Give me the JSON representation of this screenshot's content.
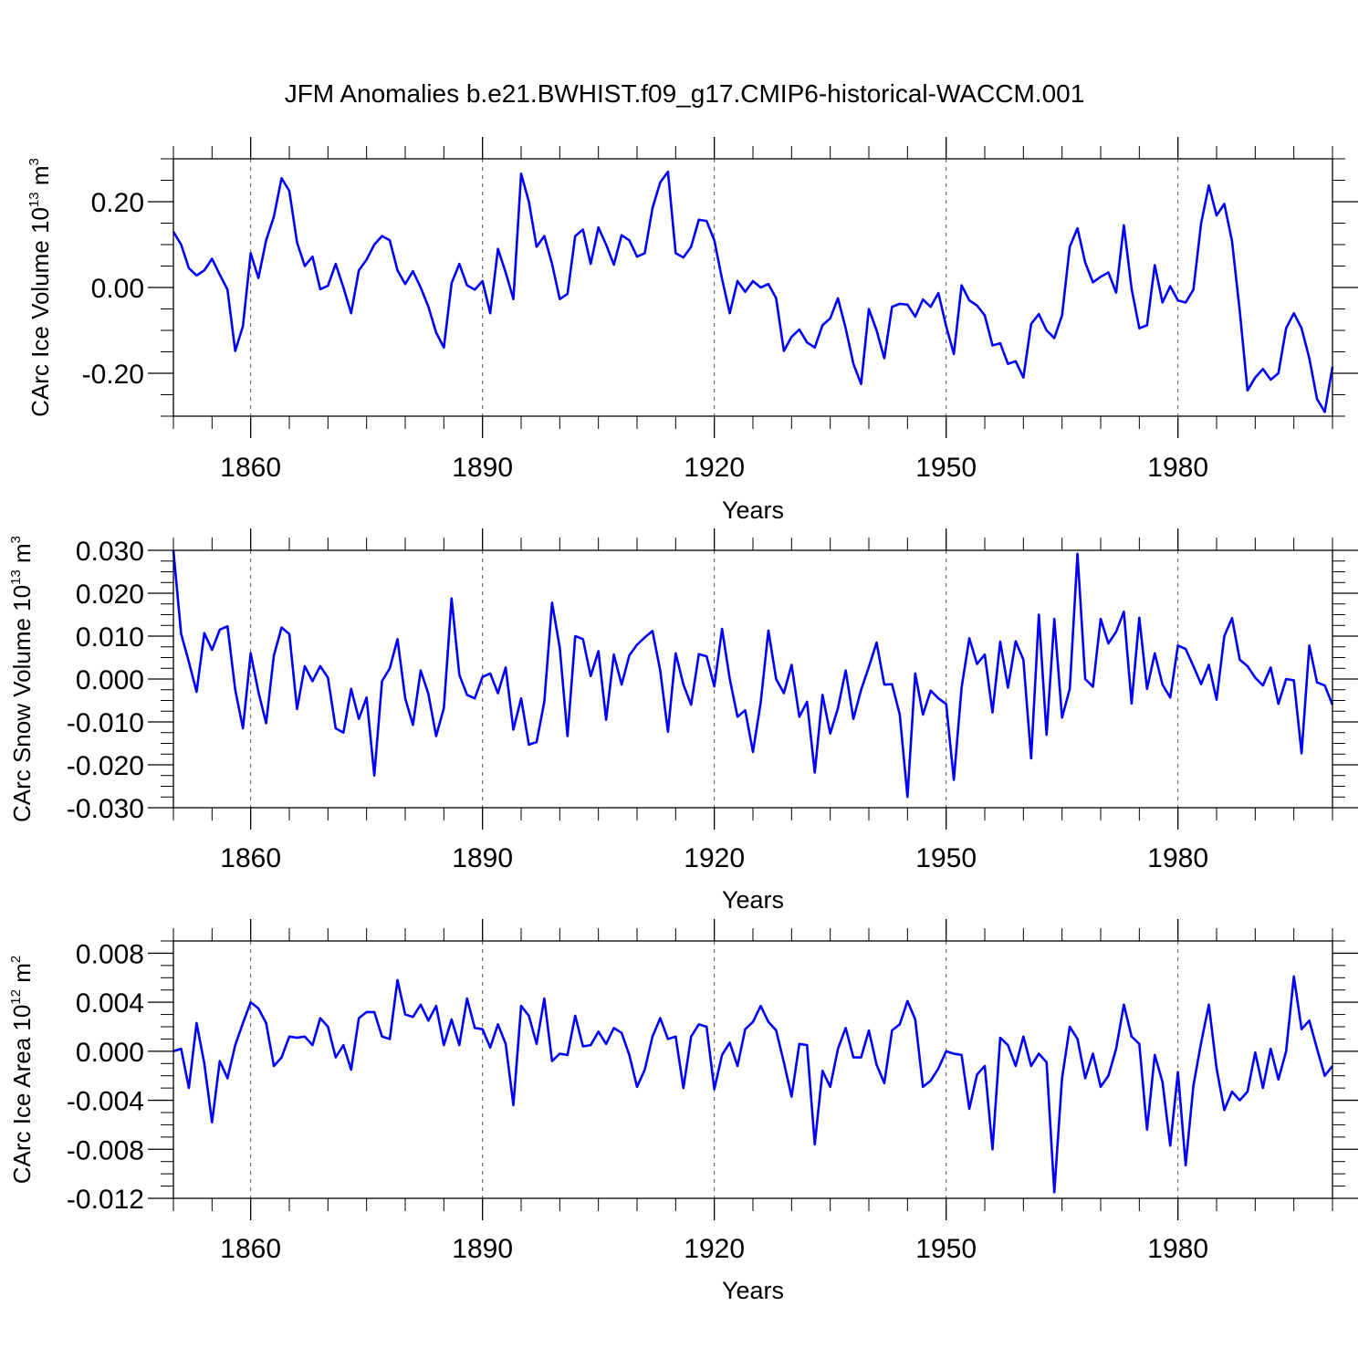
{
  "title": "JFM Anomalies b.e21.BWHIST.f09_g17.CMIP6-historical-WACCM.001",
  "line_color": "#0000ff",
  "chart_data": [
    {
      "type": "line",
      "xlabel": "Years",
      "ylabel_main": "CArc Ice Volume 10",
      "ylabel_exp": "13",
      "ylabel_unit": " m",
      "ylabel_unit_exp": "3",
      "xlim": [
        1850,
        2000
      ],
      "ylim": [
        -0.3,
        0.3
      ],
      "xticks": [
        1860,
        1890,
        1920,
        1950,
        1980
      ],
      "xtick_labels": [
        "1860",
        "1890",
        "1920",
        "1950",
        "1980"
      ],
      "yticks": [
        0.2,
        0.0,
        -0.2
      ],
      "ytick_labels": [
        "0.20",
        "0.00",
        "-0.20"
      ],
      "x_start": 1850,
      "values": [
        0.13,
        0.1,
        0.045,
        0.028,
        0.04,
        0.067,
        0.03,
        -0.005,
        -0.148,
        -0.09,
        0.08,
        0.022,
        0.11,
        0.165,
        0.255,
        0.225,
        0.105,
        0.05,
        0.072,
        -0.004,
        0.004,
        0.055,
        0.0,
        -0.06,
        0.04,
        0.065,
        0.1,
        0.12,
        0.11,
        0.04,
        0.008,
        0.038,
        0.0,
        -0.045,
        -0.105,
        -0.14,
        0.01,
        0.055,
        0.005,
        -0.005,
        0.015,
        -0.06,
        0.09,
        0.035,
        -0.027,
        0.265,
        0.2,
        0.095,
        0.12,
        0.055,
        -0.027,
        -0.015,
        0.12,
        0.135,
        0.055,
        0.14,
        0.1,
        0.053,
        0.122,
        0.11,
        0.072,
        0.08,
        0.185,
        0.245,
        0.27,
        0.08,
        0.07,
        0.095,
        0.158,
        0.155,
        0.11,
        0.02,
        -0.06,
        0.015,
        -0.01,
        0.015,
        0.0,
        0.008,
        -0.025,
        -0.148,
        -0.115,
        -0.098,
        -0.128,
        -0.14,
        -0.088,
        -0.072,
        -0.025,
        -0.095,
        -0.178,
        -0.225,
        -0.05,
        -0.1,
        -0.165,
        -0.045,
        -0.038,
        -0.04,
        -0.068,
        -0.028,
        -0.045,
        -0.013,
        -0.09,
        -0.155,
        0.005,
        -0.03,
        -0.042,
        -0.065,
        -0.135,
        -0.13,
        -0.178,
        -0.172,
        -0.21,
        -0.085,
        -0.062,
        -0.1,
        -0.118,
        -0.065,
        0.095,
        0.138,
        0.058,
        0.012,
        0.025,
        0.035,
        -0.012,
        0.145,
        -0.003,
        -0.095,
        -0.088,
        0.052,
        -0.035,
        0.003,
        -0.03,
        -0.035,
        -0.005,
        0.15,
        0.238,
        0.168,
        0.195,
        0.108,
        -0.055,
        -0.24,
        -0.21,
        -0.19,
        -0.215,
        -0.2,
        -0.095,
        -0.06,
        -0.095,
        -0.165,
        -0.26,
        -0.29,
        -0.185
      ]
    },
    {
      "type": "line",
      "xlabel": "Years",
      "ylabel_main": "CArc Snow Volume 10",
      "ylabel_exp": "13",
      "ylabel_unit": " m",
      "ylabel_unit_exp": "3",
      "xlim": [
        1850,
        2000
      ],
      "ylim": [
        -0.03,
        0.03
      ],
      "xticks": [
        1860,
        1890,
        1920,
        1950,
        1980
      ],
      "xtick_labels": [
        "1860",
        "1890",
        "1920",
        "1950",
        "1980"
      ],
      "yticks": [
        0.03,
        0.02,
        0.01,
        0.0,
        -0.01,
        -0.02,
        -0.03
      ],
      "ytick_labels": [
        "0.030",
        "0.020",
        "0.010",
        "0.000",
        "-0.010",
        "-0.020",
        "-0.030"
      ],
      "x_start": 1850,
      "values": [
        0.03,
        0.0105,
        0.004,
        -0.003,
        0.0107,
        0.0068,
        0.0115,
        0.0123,
        -0.0025,
        -0.0115,
        0.006,
        -0.003,
        -0.0103,
        0.0055,
        0.012,
        0.0105,
        -0.007,
        0.003,
        -0.0005,
        0.003,
        0.0003,
        -0.0115,
        -0.0125,
        -0.0023,
        -0.0093,
        -0.0043,
        -0.0225,
        -0.0005,
        0.0025,
        0.0093,
        -0.0045,
        -0.0107,
        0.002,
        -0.0035,
        -0.0133,
        -0.0068,
        0.0188,
        0.001,
        -0.0037,
        -0.0045,
        0.0005,
        0.0013,
        -0.0033,
        0.0027,
        -0.0118,
        -0.0045,
        -0.0153,
        -0.0147,
        -0.0053,
        0.0178,
        0.0073,
        -0.0133,
        0.01,
        0.0093,
        0.0007,
        0.0065,
        -0.0095,
        0.0057,
        -0.0013,
        0.0055,
        0.008,
        0.0097,
        0.0112,
        0.002,
        -0.0123,
        0.006,
        -0.0013,
        -0.006,
        0.0058,
        0.0053,
        -0.0017,
        0.0117,
        0.0,
        -0.0088,
        -0.0073,
        -0.017,
        -0.0055,
        0.0113,
        0.0,
        -0.0033,
        0.0033,
        -0.0088,
        -0.0053,
        -0.0218,
        -0.0037,
        -0.0127,
        -0.0068,
        0.002,
        -0.0093,
        -0.0025,
        0.0028,
        0.0085,
        -0.0013,
        -0.0012,
        -0.0083,
        -0.0275,
        0.0013,
        -0.0083,
        -0.0027,
        -0.0045,
        -0.0058,
        -0.0235,
        -0.002,
        0.0095,
        0.0035,
        0.0057,
        -0.0078,
        0.0087,
        -0.002,
        0.0088,
        0.0045,
        -0.0185,
        0.015,
        -0.013,
        0.014,
        -0.009,
        -0.0023,
        0.0292,
        0.0,
        -0.0018,
        0.014,
        0.0083,
        0.011,
        0.0157,
        -0.0057,
        0.0143,
        -0.0023,
        0.006,
        -0.0013,
        -0.0043,
        0.0078,
        0.007,
        0.003,
        -0.0012,
        0.0033,
        -0.0048,
        0.01,
        0.0142,
        0.0045,
        0.003,
        0.0003,
        -0.0015,
        0.0027,
        -0.0058,
        0.0,
        -0.0003,
        -0.0173,
        0.0078,
        -0.0008,
        -0.0015,
        -0.006
      ]
    },
    {
      "type": "line",
      "xlabel": "Years",
      "ylabel_main": "CArc Ice Area 10",
      "ylabel_exp": "12",
      "ylabel_unit": " m",
      "ylabel_unit_exp": "2",
      "xlim": [
        1850,
        2000
      ],
      "ylim": [
        -0.012,
        0.009
      ],
      "xticks": [
        1860,
        1890,
        1920,
        1950,
        1980
      ],
      "xtick_labels": [
        "1860",
        "1890",
        "1920",
        "1950",
        "1980"
      ],
      "yticks": [
        0.008,
        0.004,
        0.0,
        -0.004,
        -0.008,
        -0.012
      ],
      "ytick_labels": [
        "0.008",
        "0.004",
        "0.000",
        "-0.004",
        "-0.008",
        "-0.012"
      ],
      "x_start": 1850,
      "values": [
        0.0,
        0.0002,
        -0.003,
        0.0023,
        -0.001,
        -0.0058,
        -0.0008,
        -0.0022,
        0.0005,
        0.0023,
        0.004,
        0.0035,
        0.0023,
        -0.0012,
        -0.0005,
        0.0012,
        0.0011,
        0.0012,
        0.0005,
        0.0027,
        0.002,
        -0.0005,
        0.0005,
        -0.0015,
        0.0027,
        0.0032,
        0.0032,
        0.0012,
        0.001,
        0.0058,
        0.003,
        0.0028,
        0.0038,
        0.0025,
        0.0037,
        0.0005,
        0.0026,
        0.0005,
        0.0043,
        0.0019,
        0.0018,
        0.0003,
        0.0022,
        0.0006,
        -0.0044,
        0.0037,
        0.0029,
        0.0006,
        0.0043,
        -0.0008,
        -0.0002,
        -0.0003,
        0.0029,
        0.0004,
        0.0005,
        0.0016,
        0.0006,
        0.0019,
        0.0015,
        -0.0003,
        -0.0029,
        -0.0015,
        0.0012,
        0.0027,
        0.001,
        0.0012,
        -0.003,
        0.0012,
        0.0022,
        0.002,
        -0.0031,
        -0.0003,
        0.0007,
        -0.0012,
        0.0018,
        0.0024,
        0.0037,
        0.0024,
        0.0017,
        -0.0009,
        -0.0037,
        0.0006,
        0.0005,
        -0.0076,
        -0.0016,
        -0.0029,
        0.0002,
        0.0019,
        -0.0005,
        -0.0005,
        0.0017,
        -0.0011,
        -0.0026,
        0.0017,
        0.0022,
        0.0041,
        0.0026,
        -0.0029,
        -0.0024,
        -0.0014,
        0.0,
        -0.0002,
        -0.0003,
        -0.0047,
        -0.0019,
        -0.0012,
        -0.008,
        0.0011,
        0.0005,
        -0.0012,
        0.0012,
        -0.0012,
        -0.0002,
        -0.0009,
        -0.0115,
        -0.0022,
        0.002,
        0.001,
        -0.0022,
        -0.0002,
        -0.0029,
        -0.002,
        0.0002,
        0.0038,
        0.0012,
        0.0006,
        -0.0064,
        -0.0003,
        -0.0025,
        -0.0077,
        -0.0017,
        -0.0093,
        -0.0028,
        0.0007,
        0.0038,
        -0.0014,
        -0.0048,
        -0.0033,
        -0.004,
        -0.0033,
        -0.0001,
        -0.003,
        0.0002,
        -0.0023,
        0.0,
        0.0061,
        0.0018,
        0.0025,
        0.0002,
        -0.002,
        -0.0012
      ]
    }
  ]
}
